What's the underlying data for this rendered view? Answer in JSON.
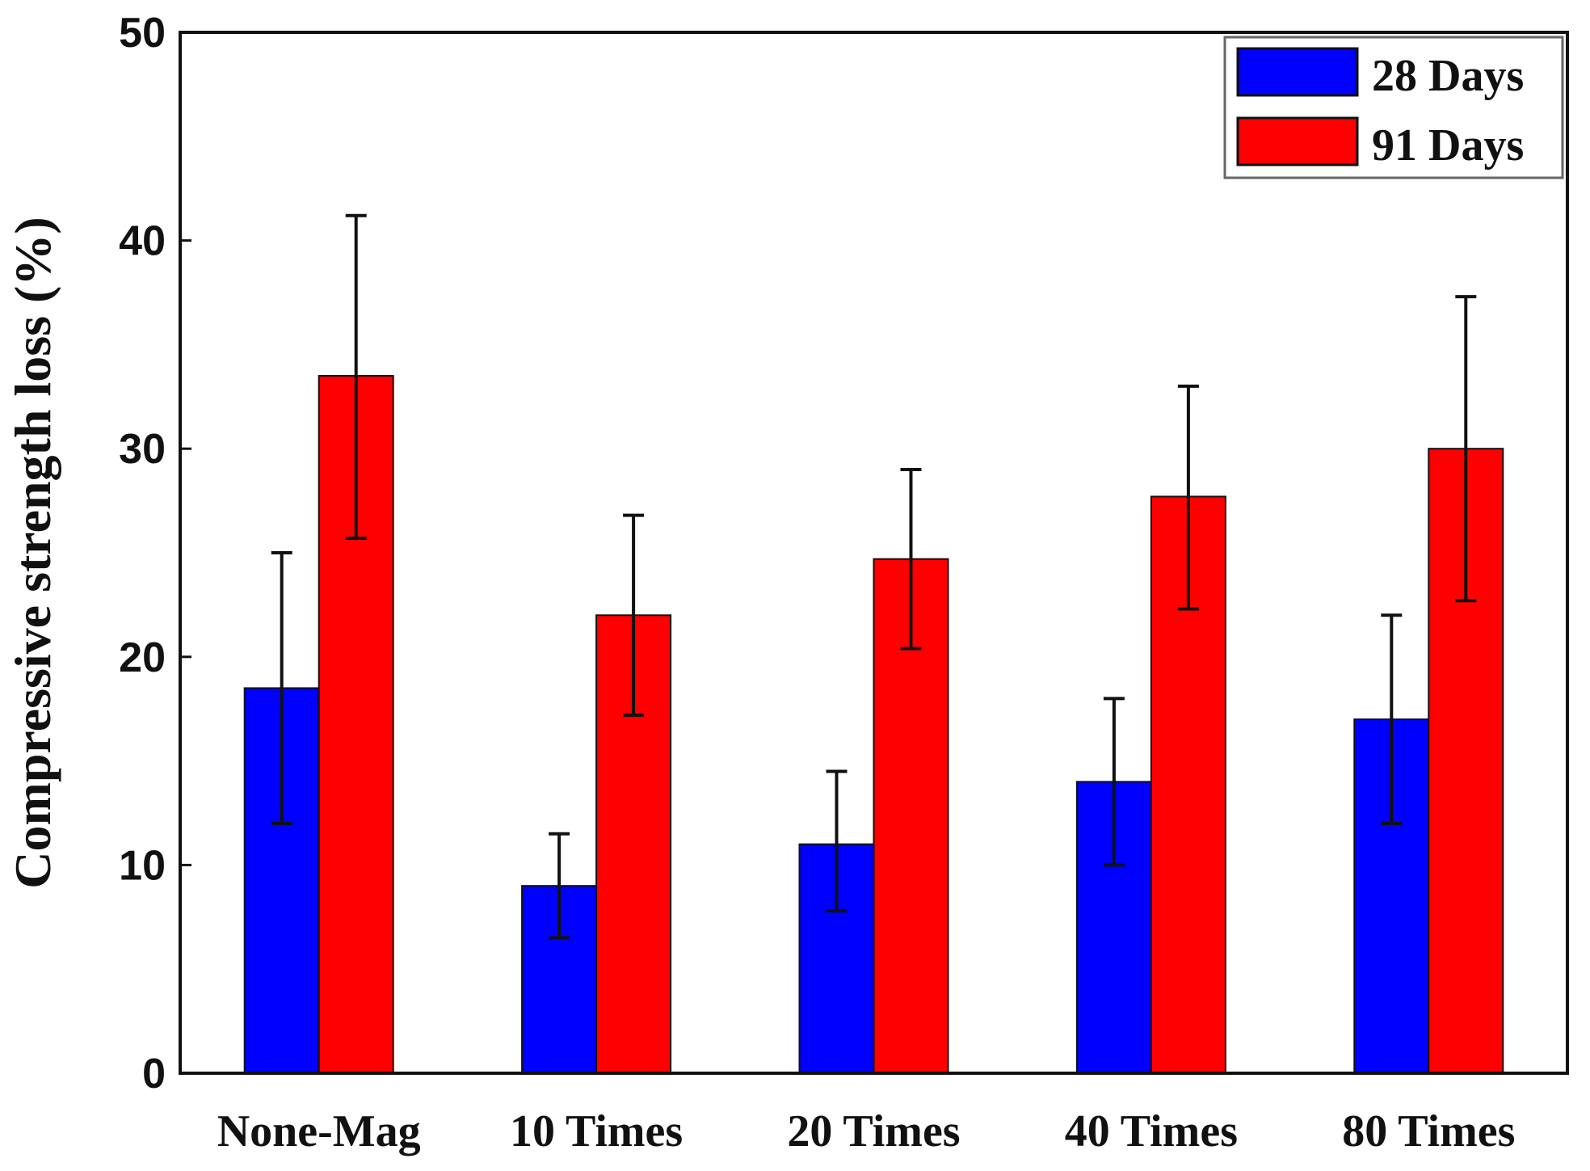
{
  "chart_data": {
    "type": "bar",
    "title": "",
    "xlabel": "",
    "ylabel": "Compressive strength loss (%)",
    "ylim": [
      0,
      50
    ],
    "yticks": [
      0,
      10,
      20,
      30,
      40,
      50
    ],
    "categories": [
      "None-Mag",
      "10 Times",
      "20 Times",
      "40 Times",
      "80 Times"
    ],
    "series": [
      {
        "name": "28 Days",
        "color": "#0000ff",
        "values": [
          18.5,
          9.0,
          11.0,
          14.0,
          17.0
        ],
        "err_low": [
          12.0,
          6.5,
          7.8,
          10.0,
          12.0
        ],
        "err_high": [
          25.0,
          11.5,
          14.5,
          18.0,
          22.0
        ]
      },
      {
        "name": "91 Days",
        "color": "#ff0000",
        "values": [
          33.5,
          22.0,
          24.7,
          27.7,
          30.0
        ],
        "err_low": [
          25.7,
          17.2,
          20.4,
          22.3,
          22.7
        ],
        "err_high": [
          41.2,
          26.8,
          29.0,
          33.0,
          37.3
        ]
      }
    ],
    "grid": false,
    "legend_position": "top-right"
  }
}
